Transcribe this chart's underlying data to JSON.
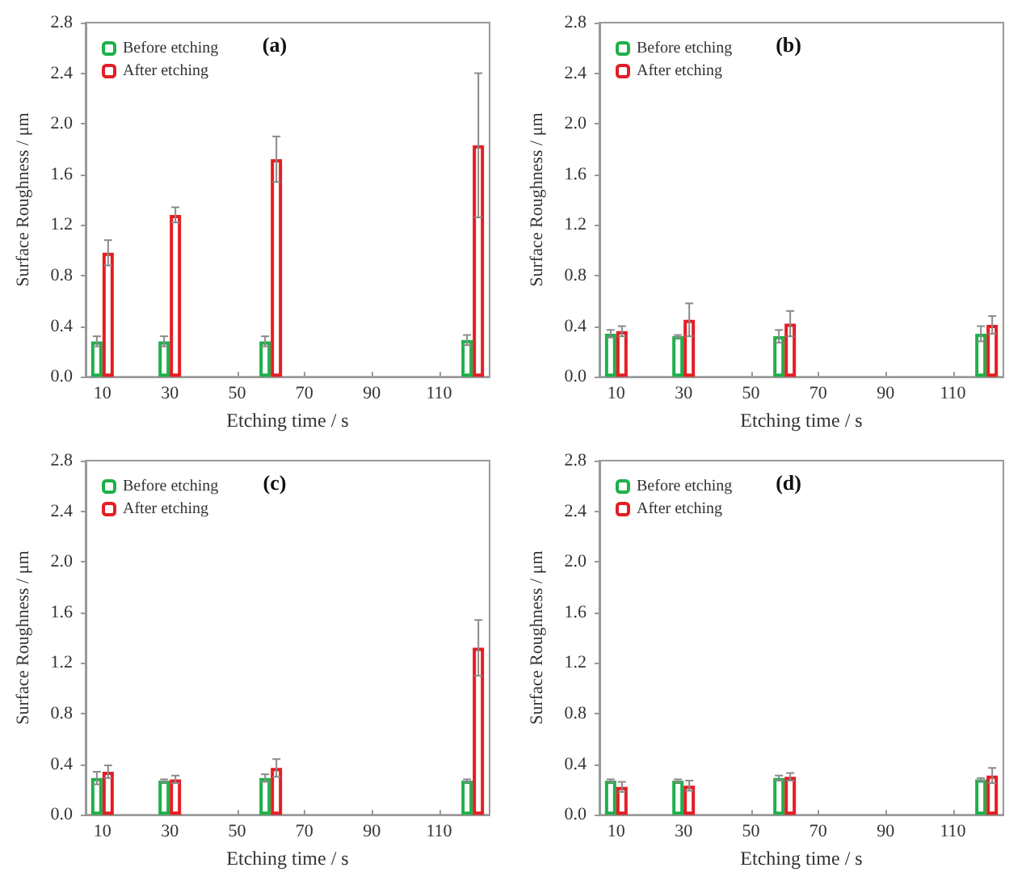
{
  "chart_data": [
    {
      "type": "bar",
      "title": "(a)",
      "xlabel": "Etching time / s",
      "ylabel": "Surface Roughness / μm",
      "x": [
        10,
        30,
        60,
        120
      ],
      "xlim": [
        5,
        125
      ],
      "xticks": [
        10,
        30,
        50,
        70,
        90,
        110
      ],
      "ylim": [
        0,
        2.8
      ],
      "yticks": [
        {
          "value": 0,
          "label": "0.0"
        },
        {
          "value": 0.4,
          "label": "0.4"
        },
        {
          "value": 0.8,
          "label": "0.8"
        },
        {
          "value": 1.2,
          "label": "1.2"
        },
        {
          "value": 1.6,
          "label": "1.6"
        },
        {
          "value": 2.0,
          "label": "2.0"
        },
        {
          "value": 2.4,
          "label": "2.4"
        },
        {
          "value": 2.8,
          "label": "2.8"
        }
      ],
      "grid": false,
      "legend": "top left",
      "series": [
        {
          "name": "Before etching",
          "color": "#1fb04a",
          "values": [
            0.28,
            0.28,
            0.28,
            0.29
          ],
          "errors": [
            0.04,
            0.04,
            0.04,
            0.04
          ]
        },
        {
          "name": "After etching",
          "color": "#e31e24",
          "values": [
            0.98,
            1.28,
            1.72,
            1.83
          ],
          "errors": [
            0.1,
            0.06,
            0.18,
            0.57
          ]
        }
      ]
    },
    {
      "type": "bar",
      "title": "(b)",
      "xlabel": "Etching time / s",
      "ylabel": "Surface Roughness / μm",
      "x": [
        10,
        30,
        60,
        120
      ],
      "xlim": [
        5,
        125
      ],
      "xticks": [
        10,
        30,
        50,
        70,
        90,
        110
      ],
      "ylim": [
        0,
        2.8
      ],
      "yticks": [
        {
          "value": 0,
          "label": "0.0"
        },
        {
          "value": 0.4,
          "label": "0.4"
        },
        {
          "value": 0.8,
          "label": "0.8"
        },
        {
          "value": 1.2,
          "label": "1.2"
        },
        {
          "value": 1.6,
          "label": "1.6"
        },
        {
          "value": 2.0,
          "label": "2.0"
        },
        {
          "value": 2.4,
          "label": "2.4"
        },
        {
          "value": 2.8,
          "label": "2.8"
        }
      ],
      "grid": false,
      "legend": "top left",
      "series": [
        {
          "name": "Before etching",
          "color": "#1fb04a",
          "values": [
            0.34,
            0.32,
            0.32,
            0.34
          ],
          "errors": [
            0.03,
            0.01,
            0.05,
            0.06
          ]
        },
        {
          "name": "After etching",
          "color": "#e31e24",
          "values": [
            0.36,
            0.45,
            0.42,
            0.41
          ],
          "errors": [
            0.04,
            0.13,
            0.1,
            0.07
          ]
        }
      ]
    },
    {
      "type": "bar",
      "title": "(c)",
      "xlabel": "Etching time / s",
      "ylabel": "Surface Roughness / μm",
      "x": [
        10,
        30,
        60,
        120
      ],
      "xlim": [
        5,
        125
      ],
      "xticks": [
        10,
        30,
        50,
        70,
        90,
        110
      ],
      "ylim": [
        0,
        2.8
      ],
      "yticks": [
        {
          "value": 0,
          "label": "0.0"
        },
        {
          "value": 0.4,
          "label": "0.4"
        },
        {
          "value": 0.8,
          "label": "0.8"
        },
        {
          "value": 1.2,
          "label": "1.2"
        },
        {
          "value": 1.6,
          "label": "1.6"
        },
        {
          "value": 2.0,
          "label": "2.0"
        },
        {
          "value": 2.4,
          "label": "2.4"
        },
        {
          "value": 2.8,
          "label": "2.8"
        }
      ],
      "grid": false,
      "legend": "top left",
      "series": [
        {
          "name": "Before etching",
          "color": "#1fb04a",
          "values": [
            0.29,
            0.27,
            0.29,
            0.27
          ],
          "errors": [
            0.05,
            0.01,
            0.03,
            0.01
          ]
        },
        {
          "name": "After etching",
          "color": "#e31e24",
          "values": [
            0.34,
            0.28,
            0.37,
            1.32
          ],
          "errors": [
            0.05,
            0.03,
            0.07,
            0.22
          ]
        }
      ]
    },
    {
      "type": "bar",
      "title": "(d)",
      "xlabel": "Etching time / s",
      "ylabel": "Surface Roughness / μm",
      "x": [
        10,
        30,
        60,
        120
      ],
      "xlim": [
        5,
        125
      ],
      "xticks": [
        10,
        30,
        50,
        70,
        90,
        110
      ],
      "ylim": [
        0,
        2.8
      ],
      "yticks": [
        {
          "value": 0,
          "label": "0.0"
        },
        {
          "value": 0.4,
          "label": "0.4"
        },
        {
          "value": 0.8,
          "label": "0.8"
        },
        {
          "value": 1.2,
          "label": "1.2"
        },
        {
          "value": 1.6,
          "label": "1.6"
        },
        {
          "value": 2.0,
          "label": "2.0"
        },
        {
          "value": 2.4,
          "label": "2.4"
        },
        {
          "value": 2.8,
          "label": "2.8"
        }
      ],
      "grid": false,
      "legend": "top left",
      "series": [
        {
          "name": "Before etching",
          "color": "#1fb04a",
          "values": [
            0.27,
            0.27,
            0.29,
            0.28
          ],
          "errors": [
            0.01,
            0.01,
            0.02,
            0.01
          ]
        },
        {
          "name": "After etching",
          "color": "#e31e24",
          "values": [
            0.22,
            0.23,
            0.3,
            0.31
          ],
          "errors": [
            0.04,
            0.04,
            0.03,
            0.06
          ]
        }
      ]
    }
  ]
}
